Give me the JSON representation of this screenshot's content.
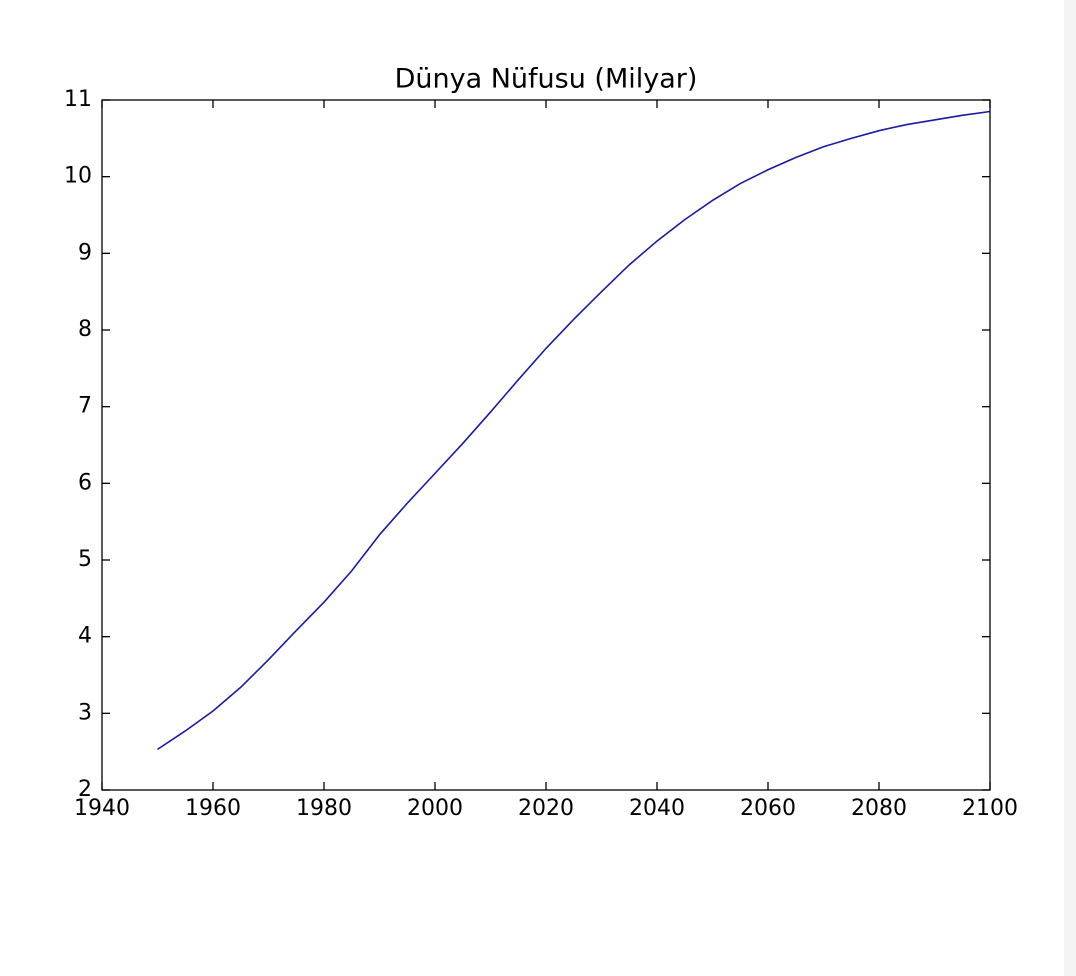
{
  "chart_data": {
    "type": "line",
    "title": "Dünya Nüfusu (Milyar)",
    "x": [
      1950,
      1955,
      1960,
      1965,
      1970,
      1975,
      1980,
      1985,
      1990,
      1995,
      2000,
      2005,
      2010,
      2015,
      2020,
      2025,
      2030,
      2035,
      2040,
      2045,
      2050,
      2055,
      2060,
      2065,
      2070,
      2075,
      2080,
      2085,
      2090,
      2095,
      2100
    ],
    "series": [
      {
        "color": "#1a1aa8",
        "values": [
          2.53,
          2.77,
          3.03,
          3.34,
          3.7,
          4.08,
          4.45,
          4.86,
          5.33,
          5.74,
          6.13,
          6.52,
          6.93,
          7.35,
          7.76,
          8.14,
          8.5,
          8.85,
          9.16,
          9.44,
          9.69,
          9.91,
          10.09,
          10.25,
          10.39,
          10.5,
          10.6,
          10.68,
          10.74,
          10.8,
          10.85
        ]
      }
    ],
    "xlim": [
      1940,
      2100
    ],
    "xticks": [
      1940,
      1960,
      1980,
      2000,
      2020,
      2040,
      2060,
      2080,
      2100
    ],
    "ylim": [
      2,
      11
    ],
    "yticks": [
      2,
      3,
      4,
      5,
      6,
      7,
      8,
      9,
      10,
      11
    ]
  }
}
